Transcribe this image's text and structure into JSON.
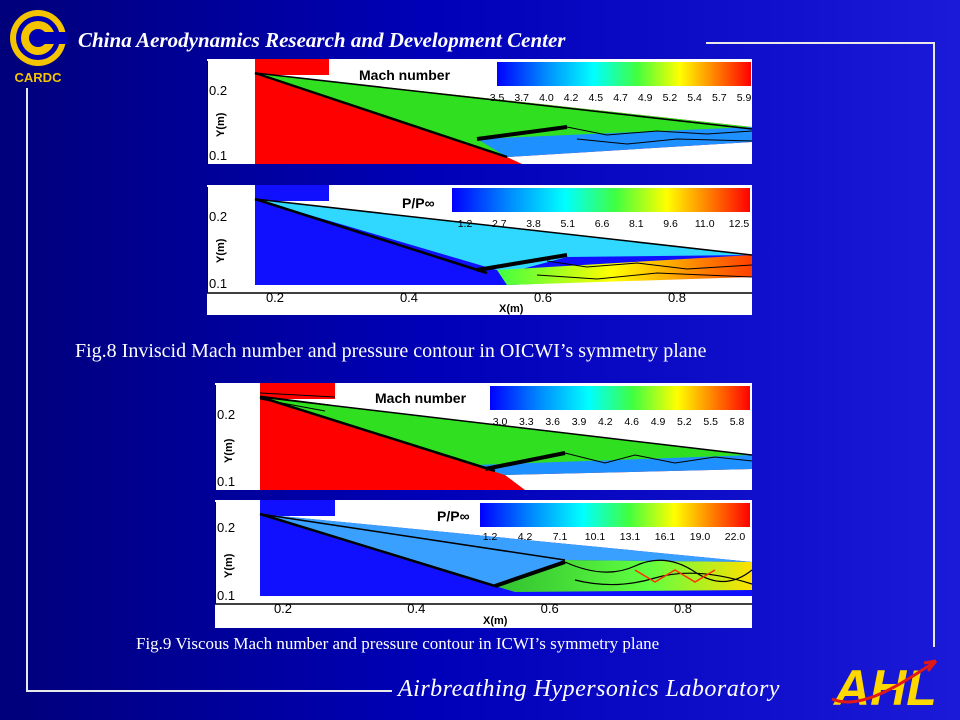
{
  "header": {
    "title": "China Aerodynamics Research and Development Center",
    "logo_text": "CARDC"
  },
  "footer": {
    "lab_name": "Airbreathing Hypersonics Laboratory",
    "logo_text": "AHL"
  },
  "colors": {
    "background": "#0000b0",
    "frame": "#e8e8e8",
    "logo_yellow": "#f5c400",
    "ahl_yellow": "#ffd800",
    "ahl_red": "#e01818"
  },
  "fig8": {
    "caption": "Fig.8 Inviscid Mach number and pressure contour in OICWI’s symmetry plane",
    "mach": {
      "legend_title": "Mach number",
      "levels": [
        "3.5",
        "3.7",
        "4.0",
        "4.2",
        "4.5",
        "4.7",
        "4.9",
        "5.2",
        "5.4",
        "5.7",
        "5.9"
      ]
    },
    "pressure": {
      "legend_title": "P/P∞",
      "levels": [
        "1.2",
        "2.7",
        "3.8",
        "5.1",
        "6.6",
        "8.1",
        "9.6",
        "11.0",
        "12.5"
      ]
    },
    "y_axis": {
      "label": "Y(m)",
      "ticks": [
        "0.2",
        "0.1"
      ]
    },
    "x_axis": {
      "label": "X(m)",
      "ticks": [
        "0.2",
        "0.4",
        "0.6",
        "0.8"
      ]
    }
  },
  "fig9": {
    "caption": "Fig.9 Viscous Mach number and pressure contour in ICWI’s symmetry plane",
    "mach": {
      "legend_title": "Mach number",
      "levels": [
        "3.0",
        "3.3",
        "3.6",
        "3.9",
        "4.2",
        "4.6",
        "4.9",
        "5.2",
        "5.5",
        "5.8"
      ]
    },
    "pressure": {
      "legend_title": "P/P∞",
      "levels": [
        "1.2",
        "4.2",
        "7.1",
        "10.1",
        "13.1",
        "16.1",
        "19.0",
        "22.0"
      ]
    },
    "y_axis": {
      "label": "Y(m)",
      "ticks": [
        "0.2",
        "0.1"
      ]
    },
    "x_axis": {
      "label": "X(m)",
      "ticks": [
        "0.2",
        "0.4",
        "0.6",
        "0.8"
      ]
    }
  }
}
